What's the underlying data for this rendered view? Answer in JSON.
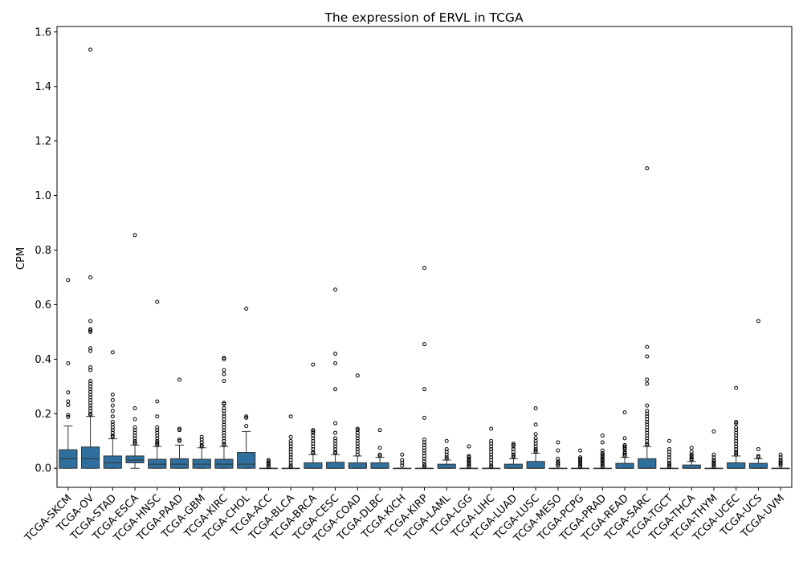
{
  "chart_data": {
    "type": "box",
    "title": "The expression of ERVL in TCGA",
    "xlabel": "",
    "ylabel": "CPM",
    "ylim": [
      -0.07,
      1.62
    ],
    "yticks": [
      "0.0",
      "0.2",
      "0.4",
      "0.6",
      "0.8",
      "1.0",
      "1.2",
      "1.4",
      "1.6"
    ],
    "ytick_values": [
      0.0,
      0.2,
      0.4,
      0.6,
      0.8,
      1.0,
      1.2,
      1.4,
      1.6
    ],
    "box_color": "#2e6f9e",
    "edge_color": "#333333",
    "grid": false,
    "categories": [
      "TCGA-SKCM",
      "TCGA-OV",
      "TCGA-STAD",
      "TCGA-ESCA",
      "TCGA-HNSC",
      "TCGA-PAAD",
      "TCGA-GBM",
      "TCGA-KIRC",
      "TCGA-CHOL",
      "TCGA-ACC",
      "TCGA-BLCA",
      "TCGA-BRCA",
      "TCGA-CESC",
      "TCGA-COAD",
      "TCGA-DLBC",
      "TCGA-KICH",
      "TCGA-KIRP",
      "TCGA-LAML",
      "TCGA-LGG",
      "TCGA-LIHC",
      "TCGA-LUAD",
      "TCGA-LUSC",
      "TCGA-MESO",
      "TCGA-PCPG",
      "TCGA-PRAD",
      "TCGA-READ",
      "TCGA-SARC",
      "TCGA-TGCT",
      "TCGA-THCA",
      "TCGA-THYM",
      "TCGA-UCEC",
      "TCGA-UCS",
      "TCGA-UVM"
    ],
    "boxes": [
      {
        "q1": 0.0,
        "median": 0.035,
        "q3": 0.068,
        "whisker_low": 0.0,
        "whisker_high": 0.155,
        "outliers": [
          0.69,
          0.385,
          0.278,
          0.245,
          0.232,
          0.195,
          0.188
        ]
      },
      {
        "q1": 0.0,
        "median": 0.035,
        "q3": 0.078,
        "whisker_low": 0.0,
        "whisker_high": 0.19,
        "outliers": [
          1.535,
          0.7,
          0.54,
          0.51,
          0.505,
          0.5,
          0.44,
          0.43,
          0.37,
          0.36,
          0.32,
          0.31,
          0.3,
          0.29,
          0.28,
          0.27,
          0.26,
          0.25,
          0.24,
          0.23,
          0.22,
          0.21,
          0.2,
          0.195
        ]
      },
      {
        "q1": 0.0,
        "median": 0.02,
        "q3": 0.045,
        "whisker_low": 0.0,
        "whisker_high": 0.108,
        "outliers": [
          0.425,
          0.27,
          0.25,
          0.23,
          0.21,
          0.19,
          0.17,
          0.16,
          0.15,
          0.14,
          0.13,
          0.12,
          0.115
        ]
      },
      {
        "q1": 0.02,
        "median": 0.03,
        "q3": 0.045,
        "whisker_low": 0.0,
        "whisker_high": 0.085,
        "outliers": [
          0.855,
          0.22,
          0.18,
          0.15,
          0.14,
          0.13,
          0.12,
          0.11,
          0.1,
          0.095,
          0.09
        ]
      },
      {
        "q1": 0.0,
        "median": 0.015,
        "q3": 0.033,
        "whisker_low": 0.0,
        "whisker_high": 0.08,
        "outliers": [
          0.61,
          0.245,
          0.19,
          0.15,
          0.14,
          0.13,
          0.12,
          0.11,
          0.1,
          0.095,
          0.09,
          0.085
        ]
      },
      {
        "q1": 0.0,
        "median": 0.015,
        "q3": 0.035,
        "whisker_low": 0.0,
        "whisker_high": 0.085,
        "outliers": [
          0.325,
          0.145,
          0.14,
          0.105,
          0.1
        ]
      },
      {
        "q1": 0.0,
        "median": 0.015,
        "q3": 0.033,
        "whisker_low": 0.0,
        "whisker_high": 0.075,
        "outliers": [
          0.115,
          0.105,
          0.095,
          0.085,
          0.08
        ]
      },
      {
        "q1": 0.0,
        "median": 0.015,
        "q3": 0.033,
        "whisker_low": 0.0,
        "whisker_high": 0.08,
        "outliers": [
          0.405,
          0.4,
          0.36,
          0.345,
          0.32,
          0.24,
          0.235,
          0.22,
          0.21,
          0.2,
          0.19,
          0.18,
          0.17,
          0.16,
          0.15,
          0.14,
          0.13,
          0.12,
          0.11,
          0.1,
          0.09,
          0.085
        ]
      },
      {
        "q1": 0.0,
        "median": 0.015,
        "q3": 0.058,
        "whisker_low": 0.0,
        "whisker_high": 0.135,
        "outliers": [
          0.585,
          0.19,
          0.185,
          0.155
        ]
      },
      {
        "q1": 0.0,
        "median": 0.0,
        "q3": 0.0,
        "whisker_low": 0.0,
        "whisker_high": 0.0,
        "outliers": [
          0.03,
          0.025,
          0.02,
          0.015,
          0.01,
          0.005
        ]
      },
      {
        "q1": 0.0,
        "median": 0.0,
        "q3": 0.0,
        "whisker_low": 0.0,
        "whisker_high": 0.0,
        "outliers": [
          0.19,
          0.115,
          0.1,
          0.09,
          0.08,
          0.07,
          0.06,
          0.05,
          0.04,
          0.03,
          0.02,
          0.01,
          0.005
        ]
      },
      {
        "q1": 0.0,
        "median": 0.0,
        "q3": 0.02,
        "whisker_low": 0.0,
        "whisker_high": 0.05,
        "outliers": [
          0.38,
          0.14,
          0.135,
          0.13,
          0.12,
          0.11,
          0.1,
          0.09,
          0.08,
          0.07,
          0.06,
          0.055
        ]
      },
      {
        "q1": 0.0,
        "median": 0.0,
        "q3": 0.022,
        "whisker_low": 0.0,
        "whisker_high": 0.05,
        "outliers": [
          0.655,
          0.42,
          0.385,
          0.29,
          0.165,
          0.13,
          0.11,
          0.1,
          0.09,
          0.08,
          0.07,
          0.06,
          0.055
        ]
      },
      {
        "q1": 0.0,
        "median": 0.0,
        "q3": 0.02,
        "whisker_low": 0.0,
        "whisker_high": 0.045,
        "outliers": [
          0.34,
          0.145,
          0.14,
          0.13,
          0.12,
          0.11,
          0.1,
          0.09,
          0.08,
          0.07,
          0.06,
          0.05
        ]
      },
      {
        "q1": 0.0,
        "median": 0.0,
        "q3": 0.02,
        "whisker_low": 0.0,
        "whisker_high": 0.04,
        "outliers": [
          0.14,
          0.075,
          0.05,
          0.045
        ]
      },
      {
        "q1": 0.0,
        "median": 0.0,
        "q3": 0.0,
        "whisker_low": 0.0,
        "whisker_high": 0.0,
        "outliers": [
          0.05,
          0.03,
          0.02,
          0.01
        ]
      },
      {
        "q1": 0.0,
        "median": 0.0,
        "q3": 0.0,
        "whisker_low": 0.0,
        "whisker_high": 0.0,
        "outliers": [
          0.735,
          0.455,
          0.29,
          0.185,
          0.105,
          0.095,
          0.085,
          0.075,
          0.065,
          0.055,
          0.045,
          0.035,
          0.025,
          0.015,
          0.01,
          0.005
        ]
      },
      {
        "q1": 0.0,
        "median": 0.0,
        "q3": 0.015,
        "whisker_low": 0.0,
        "whisker_high": 0.03,
        "outliers": [
          0.1,
          0.07,
          0.06,
          0.05,
          0.04,
          0.035
        ]
      },
      {
        "q1": 0.0,
        "median": 0.0,
        "q3": 0.0,
        "whisker_low": 0.0,
        "whisker_high": 0.0,
        "outliers": [
          0.08,
          0.045,
          0.04,
          0.035,
          0.03,
          0.025,
          0.02,
          0.015,
          0.01,
          0.005
        ]
      },
      {
        "q1": 0.0,
        "median": 0.0,
        "q3": 0.0,
        "whisker_low": 0.0,
        "whisker_high": 0.0,
        "outliers": [
          0.145,
          0.1,
          0.09,
          0.08,
          0.07,
          0.06,
          0.05,
          0.04,
          0.03,
          0.02,
          0.01,
          0.005
        ]
      },
      {
        "q1": 0.0,
        "median": 0.0,
        "q3": 0.015,
        "whisker_low": 0.0,
        "whisker_high": 0.035,
        "outliers": [
          0.09,
          0.085,
          0.08,
          0.07,
          0.06,
          0.05,
          0.045,
          0.04
        ]
      },
      {
        "q1": 0.0,
        "median": 0.0,
        "q3": 0.025,
        "whisker_low": 0.0,
        "whisker_high": 0.055,
        "outliers": [
          0.22,
          0.16,
          0.125,
          0.11,
          0.1,
          0.09,
          0.08,
          0.07,
          0.065,
          0.06
        ]
      },
      {
        "q1": 0.0,
        "median": 0.0,
        "q3": 0.0,
        "whisker_low": 0.0,
        "whisker_high": 0.0,
        "outliers": [
          0.095,
          0.065,
          0.035,
          0.025,
          0.02,
          0.015,
          0.01
        ]
      },
      {
        "q1": 0.0,
        "median": 0.0,
        "q3": 0.0,
        "whisker_low": 0.0,
        "whisker_high": 0.0,
        "outliers": [
          0.065,
          0.04,
          0.035,
          0.03,
          0.025,
          0.02,
          0.015,
          0.01,
          0.005
        ]
      },
      {
        "q1": 0.0,
        "median": 0.0,
        "q3": 0.0,
        "whisker_low": 0.0,
        "whisker_high": 0.0,
        "outliers": [
          0.12,
          0.095,
          0.065,
          0.055,
          0.05,
          0.045,
          0.04,
          0.035,
          0.03,
          0.025,
          0.02,
          0.015,
          0.01,
          0.005
        ]
      },
      {
        "q1": 0.0,
        "median": 0.0,
        "q3": 0.018,
        "whisker_low": 0.0,
        "whisker_high": 0.04,
        "outliers": [
          0.205,
          0.11,
          0.085,
          0.08,
          0.075,
          0.07,
          0.06,
          0.055,
          0.05,
          0.045
        ]
      },
      {
        "q1": 0.0,
        "median": 0.0,
        "q3": 0.035,
        "whisker_low": 0.0,
        "whisker_high": 0.08,
        "outliers": [
          1.1,
          0.445,
          0.41,
          0.325,
          0.31,
          0.23,
          0.21,
          0.2,
          0.19,
          0.18,
          0.17,
          0.16,
          0.15,
          0.14,
          0.13,
          0.12,
          0.11,
          0.1,
          0.09,
          0.085
        ]
      },
      {
        "q1": 0.0,
        "median": 0.0,
        "q3": 0.0,
        "whisker_low": 0.0,
        "whisker_high": 0.0,
        "outliers": [
          0.1,
          0.07,
          0.06,
          0.05,
          0.04,
          0.03,
          0.02,
          0.015,
          0.01,
          0.005
        ]
      },
      {
        "q1": 0.0,
        "median": 0.0,
        "q3": 0.012,
        "whisker_low": 0.0,
        "whisker_high": 0.025,
        "outliers": [
          0.075,
          0.06,
          0.05,
          0.045,
          0.04,
          0.035,
          0.03
        ]
      },
      {
        "q1": 0.0,
        "median": 0.0,
        "q3": 0.0,
        "whisker_low": 0.0,
        "whisker_high": 0.0,
        "outliers": [
          0.135,
          0.05,
          0.04,
          0.03,
          0.025,
          0.02,
          0.015,
          0.01,
          0.005
        ]
      },
      {
        "q1": 0.0,
        "median": 0.0,
        "q3": 0.02,
        "whisker_low": 0.0,
        "whisker_high": 0.045,
        "outliers": [
          0.295,
          0.17,
          0.165,
          0.15,
          0.14,
          0.13,
          0.12,
          0.11,
          0.1,
          0.09,
          0.08,
          0.07,
          0.06,
          0.055,
          0.05
        ]
      },
      {
        "q1": 0.0,
        "median": 0.0,
        "q3": 0.018,
        "whisker_low": 0.0,
        "whisker_high": 0.035,
        "outliers": [
          0.54,
          0.07,
          0.045,
          0.04
        ]
      },
      {
        "q1": 0.0,
        "median": 0.0,
        "q3": 0.0,
        "whisker_low": 0.0,
        "whisker_high": 0.0,
        "outliers": [
          0.05,
          0.04,
          0.03,
          0.025,
          0.02,
          0.015,
          0.01
        ]
      }
    ]
  }
}
